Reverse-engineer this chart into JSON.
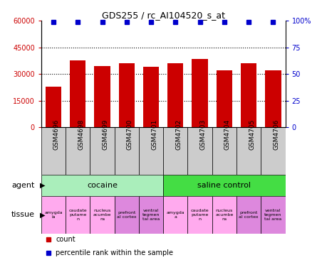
{
  "title": "GDS255 / rc_AI104520_s_at",
  "samples": [
    "GSM4696",
    "GSM4698",
    "GSM4699",
    "GSM4700",
    "GSM4701",
    "GSM4702",
    "GSM4703",
    "GSM4704",
    "GSM4705",
    "GSM4706"
  ],
  "counts": [
    23000,
    37500,
    34500,
    36000,
    34000,
    36000,
    38500,
    32000,
    36000,
    32000
  ],
  "bar_color": "#cc0000",
  "percentile_color": "#0000cc",
  "percentile_values": [
    99,
    99,
    99,
    99,
    99,
    99,
    99,
    99,
    99,
    99
  ],
  "ylim_left": [
    0,
    60000
  ],
  "ylim_right": [
    0,
    100
  ],
  "yticks_left": [
    0,
    15000,
    30000,
    45000,
    60000
  ],
  "yticks_right": [
    0,
    25,
    50,
    75,
    100
  ],
  "ytick_labels_left": [
    "0",
    "15000",
    "30000",
    "45000",
    "60000"
  ],
  "ytick_labels_right": [
    "0",
    "25",
    "50",
    "75",
    "100%"
  ],
  "agent_cocaine_label": "cocaine",
  "agent_saline_label": "saline control",
  "agent_cocaine_color": "#aaeebb",
  "agent_saline_color": "#44dd44",
  "tissue_labels": [
    "amygda\nla",
    "caudate\nputame\nn",
    "nucleus\nacumbe\nns",
    "prefront\nal cortex",
    "ventral\ntegmen\ntal area",
    "amygda\na",
    "caudate\nputame\nn",
    "nucleus\nacumbe\nns",
    "prefront\nal cortex",
    "ventral\ntegmen\ntal area"
  ],
  "tissue_colors": [
    "#ffaaee",
    "#ffaaee",
    "#ffaaee",
    "#dd88dd",
    "#dd88dd",
    "#ffaaee",
    "#ffaaee",
    "#ffaaee",
    "#dd88dd",
    "#dd88dd"
  ],
  "xticklabel_bg": "#cccccc",
  "legend_count_color": "#cc0000",
  "legend_percentile_color": "#0000cc",
  "legend_count_label": "count",
  "legend_percentile_label": "percentile rank within the sample",
  "grid_color": "black",
  "grid_yticks": [
    15000,
    30000,
    45000
  ]
}
